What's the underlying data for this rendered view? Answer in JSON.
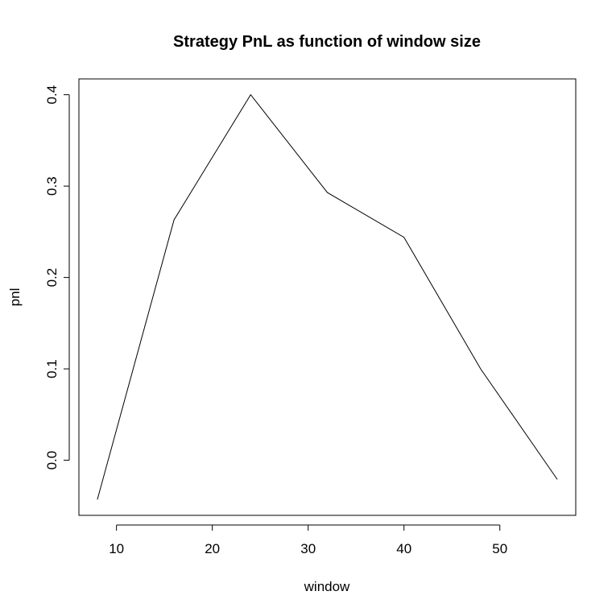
{
  "chart_data": {
    "type": "line",
    "title": "Strategy PnL as function of window size",
    "xlabel": "window",
    "ylabel": "pnl",
    "x": [
      8,
      16,
      24,
      32,
      40,
      48,
      56
    ],
    "series": [
      {
        "values": [
          -0.043,
          0.263,
          0.4,
          0.293,
          0.244,
          0.1,
          -0.021
        ],
        "color": "#000000"
      }
    ],
    "xlim": [
      6.08,
      57.92
    ],
    "ylim": [
      -0.0603,
      0.4173
    ],
    "xticks": [
      10,
      20,
      30,
      40,
      50
    ],
    "xtick_labels": [
      "10",
      "20",
      "30",
      "40",
      "50"
    ],
    "yticks": [
      0.0,
      0.1,
      0.2,
      0.3,
      0.4
    ],
    "ytick_labels": [
      "0.0",
      "0.1",
      "0.2",
      "0.3",
      "0.4"
    ],
    "grid": false,
    "legend": false
  }
}
